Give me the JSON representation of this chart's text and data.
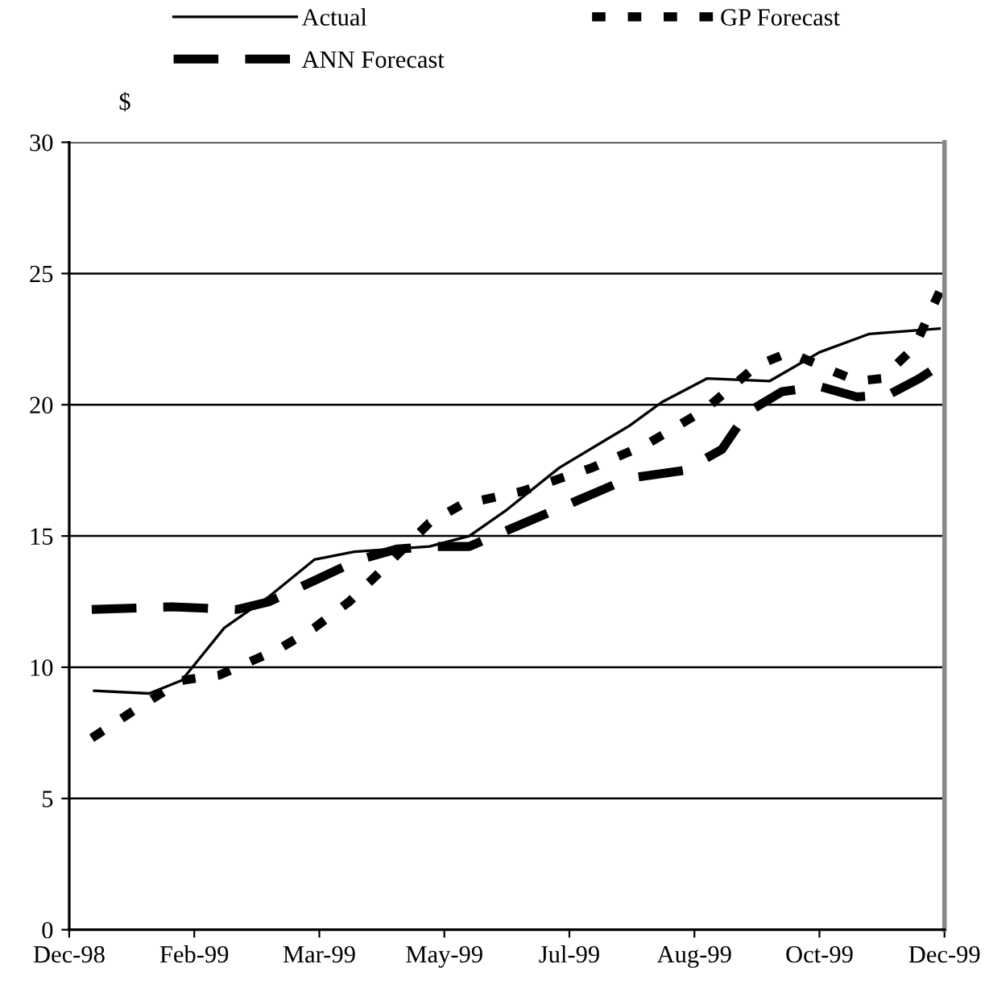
{
  "chart_data": {
    "type": "line",
    "ylabel": "$",
    "xlim": [
      "1998-12-20",
      "1999-12-05"
    ],
    "xticks": [
      {
        "value": "1998-12-20",
        "label": "Dec-98"
      },
      {
        "value": "1999-02-08",
        "label": "Feb-99"
      },
      {
        "value": "1999-03-30",
        "label": "Mar-99"
      },
      {
        "value": "1999-05-19",
        "label": "May-99"
      },
      {
        "value": "1999-07-08",
        "label": "Jul-99"
      },
      {
        "value": "1999-08-27",
        "label": "Aug-99"
      },
      {
        "value": "1999-10-16",
        "label": "Oct-99"
      },
      {
        "value": "1999-12-05",
        "label": "Dec-99"
      }
    ],
    "ylim": [
      0,
      30
    ],
    "yticks": [
      0,
      5,
      10,
      15,
      20,
      25,
      30
    ],
    "grid": "y",
    "legend": "top",
    "marker": "none",
    "series": [
      {
        "name": "Actual",
        "color": "#000000",
        "line_style": "solid",
        "x": [
          "1998-12-30",
          "1999-01-21",
          "1999-02-03",
          "1999-02-20",
          "1999-03-10",
          "1999-03-28",
          "1999-04-13",
          "1999-05-13",
          "1999-05-29",
          "1999-06-13",
          "1999-07-04",
          "1999-08-01",
          "1999-08-14",
          "1999-09-01",
          "1999-09-26",
          "1999-10-16",
          "1999-11-05",
          "1999-12-03"
        ],
        "values": [
          9.1,
          9.0,
          9.5,
          11.5,
          12.7,
          14.1,
          14.4,
          14.6,
          15.0,
          16.0,
          17.6,
          19.2,
          20.1,
          21.0,
          20.9,
          22.0,
          22.7,
          22.9
        ]
      },
      {
        "name": "ANN Forecast",
        "color": "#000000",
        "line_style": "dashed",
        "x": [
          "1998-12-29",
          "1999-01-30",
          "1999-02-25",
          "1999-03-10",
          "1999-03-28",
          "1999-04-15",
          "1999-04-30",
          "1999-05-15",
          "1999-05-29",
          "1999-06-30",
          "1999-08-01",
          "1999-08-23",
          "1999-09-07",
          "1999-09-17",
          "1999-10-01",
          "1999-10-16",
          "1999-10-31",
          "1999-11-13",
          "1999-11-25",
          "1999-12-03"
        ],
        "values": [
          12.2,
          12.3,
          12.2,
          12.5,
          13.3,
          14.1,
          14.5,
          14.6,
          14.6,
          15.9,
          17.2,
          17.5,
          18.3,
          19.7,
          20.5,
          20.7,
          20.3,
          20.4,
          21.0,
          21.5
        ]
      },
      {
        "name": "GP Forecast",
        "color": "#000000",
        "line_style": "dotted",
        "x": [
          "1998-12-29",
          "1999-01-14",
          "1999-02-03",
          "1999-02-18",
          "1999-03-14",
          "1999-03-28",
          "1999-04-11",
          "1999-04-24",
          "1999-05-13",
          "1999-05-26",
          "1999-06-19",
          "1999-07-17",
          "1999-08-08",
          "1999-08-31",
          "1999-09-21",
          "1999-10-04",
          "1999-10-16",
          "1999-10-31",
          "1999-11-10",
          "1999-11-23",
          "1999-12-03"
        ],
        "values": [
          7.3,
          8.3,
          9.5,
          9.7,
          10.7,
          11.5,
          12.5,
          13.7,
          15.5,
          16.2,
          16.7,
          17.6,
          18.5,
          19.8,
          21.5,
          22.0,
          21.5,
          20.9,
          21.0,
          22.2,
          24.3
        ]
      }
    ]
  }
}
